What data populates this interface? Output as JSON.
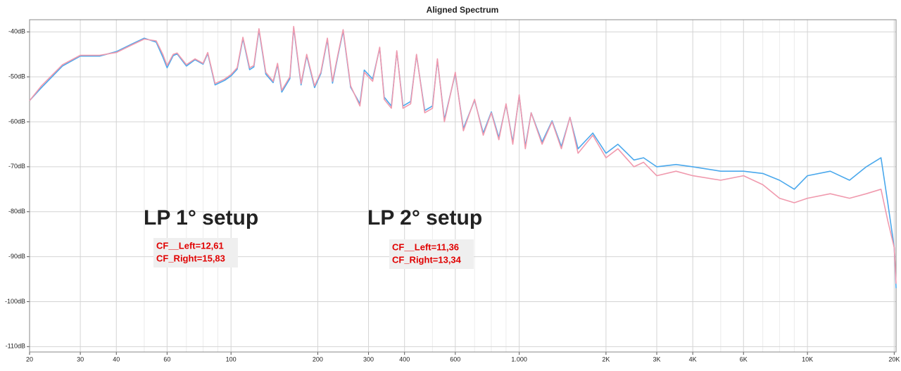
{
  "chart_data": {
    "type": "line",
    "title": "Aligned Spectrum",
    "x": [
      20,
      22,
      26,
      30,
      35,
      40,
      45,
      50,
      55,
      58,
      60,
      63,
      65,
      70,
      75,
      80,
      83,
      88,
      95,
      100,
      105,
      110,
      116,
      120,
      125,
      132,
      140,
      145,
      150,
      160,
      165,
      175,
      183,
      195,
      205,
      216,
      225,
      235,
      245,
      260,
      280,
      290,
      310,
      328,
      340,
      360,
      376,
      395,
      420,
      440,
      470,
      500,
      520,
      550,
      600,
      640,
      700,
      750,
      800,
      850,
      900,
      950,
      1000,
      1050,
      1100,
      1200,
      1300,
      1400,
      1500,
      1600,
      1800,
      2000,
      2200,
      2500,
      2700,
      3000,
      3500,
      4000,
      5000,
      6000,
      7000,
      8000,
      9000,
      10000,
      12000,
      14000,
      16000,
      18000,
      19000,
      20000,
      20300
    ],
    "series": [
      {
        "color": "#4aa8ec",
        "values": [
          -55.3,
          -52.4,
          -47.6,
          -45.4,
          -45.4,
          -44.4,
          -42.8,
          -41.4,
          -42.3,
          -45.6,
          -48,
          -45.3,
          -44.9,
          -47.6,
          -46.2,
          -47.2,
          -44.8,
          -51.8,
          -50.8,
          -49.8,
          -48.3,
          -41.5,
          -48.4,
          -47.8,
          -39.6,
          -49.4,
          -51.3,
          -47.3,
          -53.4,
          -50.4,
          -39.1,
          -51.8,
          -45.3,
          -52.4,
          -49.3,
          -41.7,
          -51.4,
          -45.3,
          -39.8,
          -52.3,
          -56,
          -48.5,
          -50.5,
          -43.6,
          -54.5,
          -56.5,
          -44.4,
          -56.5,
          -55.5,
          -45.2,
          -57.5,
          -56.5,
          -46.3,
          -59.5,
          -49.3,
          -61.5,
          -55.2,
          -62.5,
          -57.8,
          -63.5,
          -56.2,
          -64.5,
          -54.2,
          -65.5,
          -58,
          -64.5,
          -59.8,
          -65.5,
          -59,
          -66,
          -62.5,
          -67,
          -65,
          -68.5,
          -68,
          -70,
          -69.5,
          -70,
          -71,
          -71,
          -71.5,
          -73,
          -75,
          -72,
          -71,
          -73,
          -70,
          -68,
          -78,
          -88,
          -97
        ]
      },
      {
        "color": "#f09aae",
        "values": [
          -55.3,
          -52,
          -47.3,
          -45.2,
          -45.2,
          -44.6,
          -43,
          -41.6,
          -42,
          -45,
          -47.5,
          -45,
          -44.7,
          -47.3,
          -46,
          -47,
          -44.6,
          -51.5,
          -50.5,
          -49.5,
          -48,
          -41.2,
          -48,
          -47.5,
          -39.3,
          -49,
          -51,
          -47,
          -53,
          -50,
          -38.8,
          -51.5,
          -45,
          -52,
          -49,
          -41.4,
          -51,
          -45,
          -39.5,
          -52,
          -56.5,
          -49,
          -51,
          -43.4,
          -55,
          -57,
          -44.2,
          -57,
          -56,
          -45,
          -58,
          -57,
          -46,
          -60,
          -49,
          -62,
          -55,
          -63,
          -58,
          -64,
          -56,
          -65,
          -54,
          -66,
          -58,
          -65,
          -60,
          -66,
          -59,
          -67,
          -63,
          -68,
          -66,
          -70,
          -69,
          -72,
          -71,
          -72,
          -73,
          -72,
          -74,
          -77,
          -78,
          -77,
          -76,
          -77,
          -76,
          -75,
          -82,
          -88,
          -96
        ]
      }
    ],
    "xlog": true,
    "grid": true,
    "xlim": [
      20,
      20300
    ],
    "ylim": [
      -111.2,
      -37.3
    ],
    "xticks": [
      20,
      30,
      40,
      60,
      100,
      200,
      300,
      400,
      600,
      {
        "value": 1000,
        "label": "1.000"
      },
      {
        "value": 2000,
        "label": "2K"
      },
      {
        "value": 3000,
        "label": "3K"
      },
      {
        "value": 4000,
        "label": "4K"
      },
      {
        "value": 6000,
        "label": "6K"
      },
      {
        "value": 10000,
        "label": "10K"
      },
      {
        "value": 20000,
        "label": "20K"
      }
    ],
    "xminorticks": [
      50,
      70,
      80,
      90,
      500,
      700,
      800,
      900,
      5000,
      7000,
      8000,
      9000
    ],
    "yticks": [
      {
        "value": -40,
        "label": "-40dB"
      },
      {
        "value": -50,
        "label": "-50dB"
      },
      {
        "value": -60,
        "label": "-60dB"
      },
      {
        "value": -70,
        "label": "-70dB"
      },
      {
        "value": -80,
        "label": "-80dB"
      },
      {
        "value": -90,
        "label": "-90dB"
      },
      {
        "value": -100,
        "label": "-100dB"
      },
      {
        "value": -110,
        "label": "-110dB"
      }
    ],
    "annotations": [
      {
        "text": "LP 1° setup",
        "color": "#1515e0"
      },
      {
        "text": "LP 2° setup",
        "color": "#c84d4d"
      },
      {
        "lines": [
          "CF__Left=12,61",
          "CF_Right=15,83"
        ]
      },
      {
        "lines": [
          "CF__Left=11,36",
          "CF_Right=13,34"
        ]
      }
    ]
  }
}
